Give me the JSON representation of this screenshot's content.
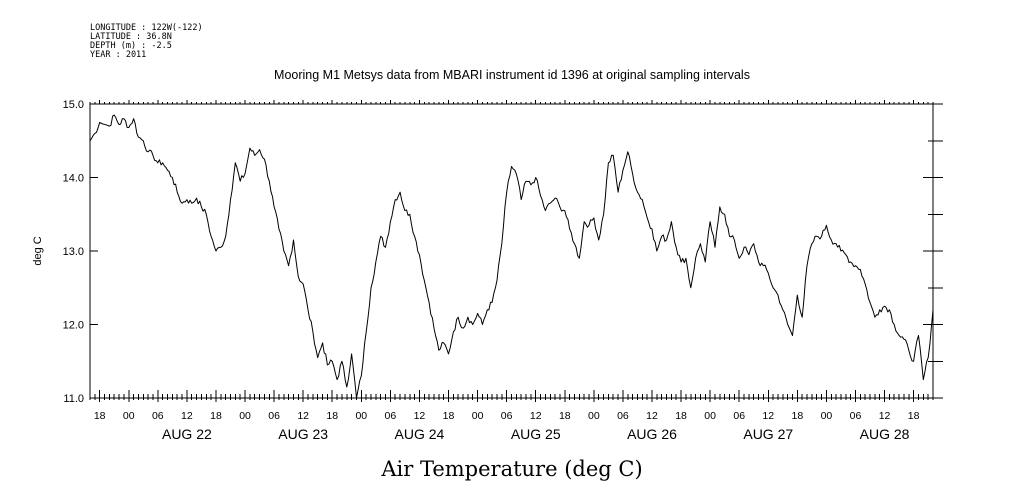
{
  "meta": {
    "longitude": "LONGITUDE : 122W(-122)",
    "latitude": "LATITUDE : 36.8N",
    "depth": "DEPTH (m) : -2.5",
    "year": "YEAR : 2011"
  },
  "chart_data": {
    "type": "line",
    "title": "Mooring M1 Metsys data from MBARI instrument id 1396 at original sampling intervals",
    "xlabel": "Air Temperature (deg C)",
    "ylabel": "deg C",
    "xlim": [
      "2011-08-21T16:00",
      "2011-08-28T22:00"
    ],
    "ylim": [
      11.0,
      15.0
    ],
    "y_ticks": [
      "11.0",
      "12.0",
      "13.0",
      "14.0",
      "15.0"
    ],
    "x_hour_labels": [
      "00",
      "06",
      "12",
      "18"
    ],
    "x_day_labels": [
      {
        "date": "2011-08-22",
        "label": "AUG 22"
      },
      {
        "date": "2011-08-23",
        "label": "AUG 23"
      },
      {
        "date": "2011-08-24",
        "label": "AUG 24"
      },
      {
        "date": "2011-08-25",
        "label": "AUG 25"
      },
      {
        "date": "2011-08-26",
        "label": "AUG 26"
      },
      {
        "date": "2011-08-27",
        "label": "AUG 27"
      },
      {
        "date": "2011-08-28",
        "label": "AUG 28"
      }
    ],
    "grid": false,
    "series": [
      {
        "color": "#000000",
        "points": [
          [
            "2011-08-21T16:00",
            14.5
          ],
          [
            "2011-08-21T17:00",
            14.6
          ],
          [
            "2011-08-21T18:00",
            14.75
          ],
          [
            "2011-08-21T20:00",
            14.7
          ],
          [
            "2011-08-21T21:00",
            14.85
          ],
          [
            "2011-08-21T22:00",
            14.72
          ],
          [
            "2011-08-21T23:00",
            14.8
          ],
          [
            "2011-08-22T00:00",
            14.68
          ],
          [
            "2011-08-22T01:00",
            14.8
          ],
          [
            "2011-08-22T02:00",
            14.55
          ],
          [
            "2011-08-22T03:00",
            14.5
          ],
          [
            "2011-08-22T04:00",
            14.35
          ],
          [
            "2011-08-22T05:00",
            14.3
          ],
          [
            "2011-08-22T06:00",
            14.2
          ],
          [
            "2011-08-22T07:00",
            14.2
          ],
          [
            "2011-08-22T08:00",
            14.1
          ],
          [
            "2011-08-22T09:00",
            14.0
          ],
          [
            "2011-08-22T10:00",
            13.8
          ],
          [
            "2011-08-22T11:00",
            13.65
          ],
          [
            "2011-08-22T12:00",
            13.7
          ],
          [
            "2011-08-22T13:00",
            13.65
          ],
          [
            "2011-08-22T14:00",
            13.72
          ],
          [
            "2011-08-22T15:00",
            13.6
          ],
          [
            "2011-08-22T16:00",
            13.5
          ],
          [
            "2011-08-22T17:00",
            13.2
          ],
          [
            "2011-08-22T18:00",
            13.0
          ],
          [
            "2011-08-22T19:00",
            13.05
          ],
          [
            "2011-08-22T20:00",
            13.2
          ],
          [
            "2011-08-22T21:00",
            13.7
          ],
          [
            "2011-08-22T22:00",
            14.2
          ],
          [
            "2011-08-22T23:00",
            13.95
          ],
          [
            "2011-08-23T00:00",
            14.05
          ],
          [
            "2011-08-23T01:00",
            14.4
          ],
          [
            "2011-08-23T02:00",
            14.3
          ],
          [
            "2011-08-23T03:00",
            14.38
          ],
          [
            "2011-08-23T04:00",
            14.25
          ],
          [
            "2011-08-23T05:00",
            13.95
          ],
          [
            "2011-08-23T06:00",
            13.6
          ],
          [
            "2011-08-23T07:00",
            13.3
          ],
          [
            "2011-08-23T08:00",
            13.0
          ],
          [
            "2011-08-23T09:00",
            12.8
          ],
          [
            "2011-08-23T10:00",
            13.15
          ],
          [
            "2011-08-23T11:00",
            12.65
          ],
          [
            "2011-08-23T12:00",
            12.55
          ],
          [
            "2011-08-23T13:00",
            12.2
          ],
          [
            "2011-08-23T14:00",
            11.9
          ],
          [
            "2011-08-23T15:00",
            11.55
          ],
          [
            "2011-08-23T16:00",
            11.75
          ],
          [
            "2011-08-23T17:00",
            11.45
          ],
          [
            "2011-08-23T18:00",
            11.5
          ],
          [
            "2011-08-23T19:00",
            11.25
          ],
          [
            "2011-08-23T20:00",
            11.5
          ],
          [
            "2011-08-23T21:00",
            11.15
          ],
          [
            "2011-08-23T22:00",
            11.6
          ],
          [
            "2011-08-23T23:00",
            11.0
          ],
          [
            "2011-08-24T00:00",
            11.3
          ],
          [
            "2011-08-24T01:00",
            11.9
          ],
          [
            "2011-08-24T02:00",
            12.5
          ],
          [
            "2011-08-24T03:00",
            12.85
          ],
          [
            "2011-08-24T04:00",
            13.2
          ],
          [
            "2011-08-24T05:00",
            13.05
          ],
          [
            "2011-08-24T06:00",
            13.4
          ],
          [
            "2011-08-24T07:00",
            13.7
          ],
          [
            "2011-08-24T08:00",
            13.8
          ],
          [
            "2011-08-24T09:00",
            13.55
          ],
          [
            "2011-08-24T10:00",
            13.5
          ],
          [
            "2011-08-24T11:00",
            13.2
          ],
          [
            "2011-08-24T12:00",
            12.95
          ],
          [
            "2011-08-24T13:00",
            12.6
          ],
          [
            "2011-08-24T14:00",
            12.3
          ],
          [
            "2011-08-24T15:00",
            11.95
          ],
          [
            "2011-08-24T16:00",
            11.65
          ],
          [
            "2011-08-24T17:00",
            11.75
          ],
          [
            "2011-08-24T18:00",
            11.6
          ],
          [
            "2011-08-24T19:00",
            11.9
          ],
          [
            "2011-08-24T20:00",
            12.1
          ],
          [
            "2011-08-24T21:00",
            11.95
          ],
          [
            "2011-08-24T22:00",
            12.1
          ],
          [
            "2011-08-24T23:00",
            12.0
          ],
          [
            "2011-08-25T00:00",
            12.15
          ],
          [
            "2011-08-25T01:00",
            12.0
          ],
          [
            "2011-08-25T02:00",
            12.2
          ],
          [
            "2011-08-25T03:00",
            12.3
          ],
          [
            "2011-08-25T04:00",
            12.6
          ],
          [
            "2011-08-25T05:00",
            13.1
          ],
          [
            "2011-08-25T06:00",
            13.8
          ],
          [
            "2011-08-25T07:00",
            14.15
          ],
          [
            "2011-08-25T08:00",
            14.05
          ],
          [
            "2011-08-25T09:00",
            13.7
          ],
          [
            "2011-08-25T10:00",
            13.95
          ],
          [
            "2011-08-25T11:00",
            13.9
          ],
          [
            "2011-08-25T12:00",
            14.0
          ],
          [
            "2011-08-25T13:00",
            13.75
          ],
          [
            "2011-08-25T14:00",
            13.55
          ],
          [
            "2011-08-25T15:00",
            13.65
          ],
          [
            "2011-08-25T16:00",
            13.72
          ],
          [
            "2011-08-25T17:00",
            13.6
          ],
          [
            "2011-08-25T18:00",
            13.55
          ],
          [
            "2011-08-25T19:00",
            13.3
          ],
          [
            "2011-08-25T20:00",
            13.1
          ],
          [
            "2011-08-25T21:00",
            12.9
          ],
          [
            "2011-08-25T22:00",
            13.4
          ],
          [
            "2011-08-25T23:00",
            13.35
          ],
          [
            "2011-08-26T00:00",
            13.45
          ],
          [
            "2011-08-26T01:00",
            13.15
          ],
          [
            "2011-08-26T02:00",
            13.5
          ],
          [
            "2011-08-26T03:00",
            14.2
          ],
          [
            "2011-08-26T04:00",
            14.3
          ],
          [
            "2011-08-26T05:00",
            13.8
          ],
          [
            "2011-08-26T06:00",
            14.1
          ],
          [
            "2011-08-26T07:00",
            14.35
          ],
          [
            "2011-08-26T08:00",
            14.05
          ],
          [
            "2011-08-26T09:00",
            13.8
          ],
          [
            "2011-08-26T10:00",
            13.7
          ],
          [
            "2011-08-26T11:00",
            13.45
          ],
          [
            "2011-08-26T12:00",
            13.3
          ],
          [
            "2011-08-26T13:00",
            13.0
          ],
          [
            "2011-08-26T14:00",
            13.2
          ],
          [
            "2011-08-26T15:00",
            13.15
          ],
          [
            "2011-08-26T16:00",
            13.4
          ],
          [
            "2011-08-26T17:00",
            13.05
          ],
          [
            "2011-08-26T18:00",
            12.85
          ],
          [
            "2011-08-26T19:00",
            12.9
          ],
          [
            "2011-08-26T20:00",
            12.5
          ],
          [
            "2011-08-26T21:00",
            12.9
          ],
          [
            "2011-08-26T22:00",
            13.1
          ],
          [
            "2011-08-26T23:00",
            12.85
          ],
          [
            "2011-08-27T00:00",
            13.4
          ],
          [
            "2011-08-27T01:00",
            13.05
          ],
          [
            "2011-08-27T02:00",
            13.6
          ],
          [
            "2011-08-27T03:00",
            13.5
          ],
          [
            "2011-08-27T04:00",
            13.2
          ],
          [
            "2011-08-27T05:00",
            13.15
          ],
          [
            "2011-08-27T06:00",
            12.9
          ],
          [
            "2011-08-27T07:00",
            13.05
          ],
          [
            "2011-08-27T08:00",
            12.95
          ],
          [
            "2011-08-27T09:00",
            13.1
          ],
          [
            "2011-08-27T10:00",
            12.85
          ],
          [
            "2011-08-27T11:00",
            12.8
          ],
          [
            "2011-08-27T12:00",
            12.7
          ],
          [
            "2011-08-27T13:00",
            12.5
          ],
          [
            "2011-08-27T14:00",
            12.4
          ],
          [
            "2011-08-27T15:00",
            12.2
          ],
          [
            "2011-08-27T16:00",
            12.0
          ],
          [
            "2011-08-27T17:00",
            11.85
          ],
          [
            "2011-08-27T18:00",
            12.4
          ],
          [
            "2011-08-27T19:00",
            12.1
          ],
          [
            "2011-08-27T20:00",
            12.8
          ],
          [
            "2011-08-27T21:00",
            13.1
          ],
          [
            "2011-08-27T22:00",
            13.2
          ],
          [
            "2011-08-27T23:00",
            13.2
          ],
          [
            "2011-08-28T00:00",
            13.35
          ],
          [
            "2011-08-28T01:00",
            13.15
          ],
          [
            "2011-08-28T02:00",
            13.1
          ],
          [
            "2011-08-28T03:00",
            13.0
          ],
          [
            "2011-08-28T04:00",
            12.95
          ],
          [
            "2011-08-28T05:00",
            12.85
          ],
          [
            "2011-08-28T06:00",
            12.8
          ],
          [
            "2011-08-28T07:00",
            12.75
          ],
          [
            "2011-08-28T08:00",
            12.55
          ],
          [
            "2011-08-28T09:00",
            12.3
          ],
          [
            "2011-08-28T10:00",
            12.1
          ],
          [
            "2011-08-28T11:00",
            12.2
          ],
          [
            "2011-08-28T12:00",
            12.25
          ],
          [
            "2011-08-28T13:00",
            12.2
          ],
          [
            "2011-08-28T14:00",
            12.0
          ],
          [
            "2011-08-28T15:00",
            11.85
          ],
          [
            "2011-08-28T16:00",
            11.8
          ],
          [
            "2011-08-28T17:00",
            11.65
          ],
          [
            "2011-08-28T18:00",
            11.5
          ],
          [
            "2011-08-28T19:00",
            11.85
          ],
          [
            "2011-08-28T20:00",
            11.25
          ],
          [
            "2011-08-28T21:00",
            11.55
          ],
          [
            "2011-08-28T22:00",
            12.2
          ]
        ]
      }
    ]
  }
}
